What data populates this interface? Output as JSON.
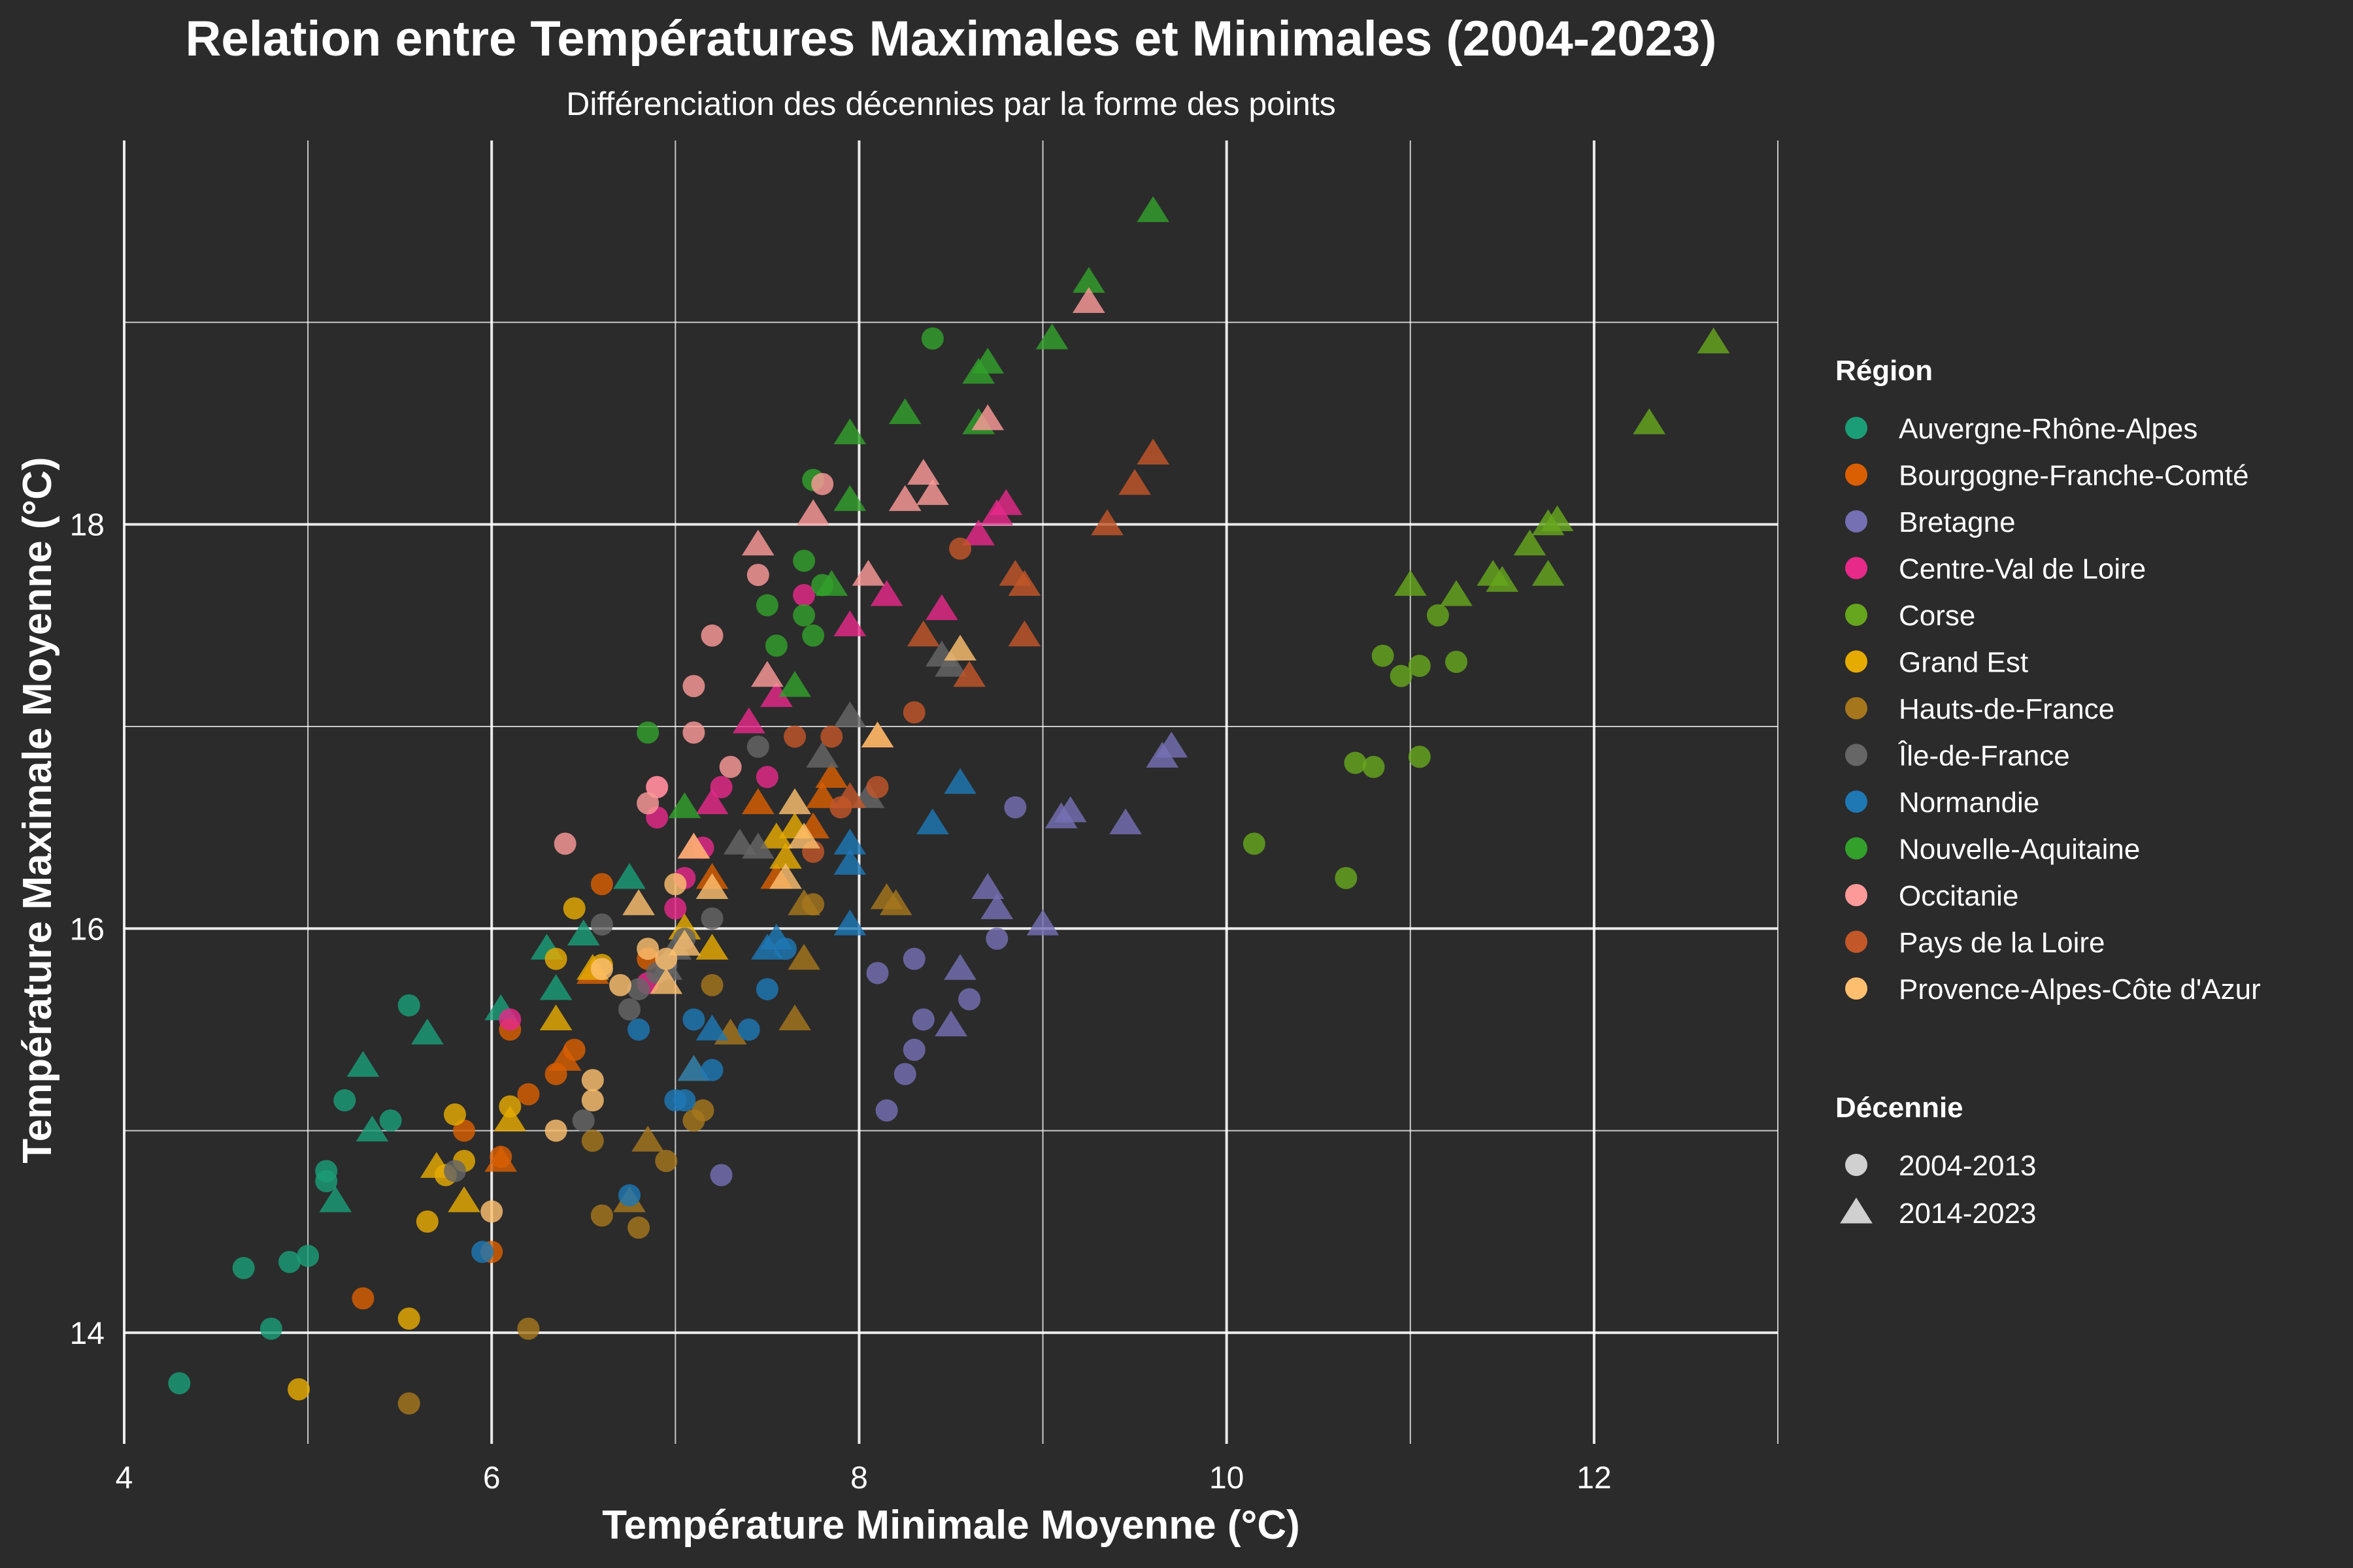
{
  "chart_data": {
    "type": "scatter",
    "title": "Relation entre Températures Maximales et Minimales (2004-2023)",
    "subtitle": "Différenciation des décennies par la forme des points",
    "xlabel": "Température Minimale Moyenne (°C)",
    "ylabel": "Température Maximale Moyenne (°C)",
    "xlim": [
      4.0,
      13.0
    ],
    "ylim": [
      13.45,
      19.9
    ],
    "xticks": [
      4,
      6,
      8,
      10,
      12
    ],
    "yticks": [
      14,
      16,
      18
    ],
    "grid": true,
    "legend_position": "right",
    "legend_region_title": "Région",
    "legend_decade_title": "Décennie",
    "decades": [
      {
        "label": "2004-2013",
        "shape": "circle"
      },
      {
        "label": "2014-2023",
        "shape": "triangle"
      }
    ],
    "series": [
      {
        "name": "Auvergne-Rhône-Alpes",
        "color": "#1b9e77",
        "points_2004_2013": [
          [
            4.3,
            13.75
          ],
          [
            4.65,
            14.32
          ],
          [
            4.8,
            14.02
          ],
          [
            4.9,
            14.35
          ],
          [
            5.0,
            14.38
          ],
          [
            5.1,
            14.8
          ],
          [
            5.1,
            14.75
          ],
          [
            5.2,
            15.15
          ],
          [
            5.45,
            15.05
          ],
          [
            5.55,
            15.62
          ]
        ],
        "points_2014_2023": [
          [
            5.15,
            14.65
          ],
          [
            5.3,
            15.32
          ],
          [
            5.35,
            15.0
          ],
          [
            5.65,
            15.48
          ],
          [
            6.05,
            15.6
          ],
          [
            6.3,
            15.9
          ],
          [
            6.35,
            15.7
          ],
          [
            6.5,
            15.97
          ],
          [
            6.75,
            16.25
          ]
        ]
      },
      {
        "name": "Bourgogne-Franche-Comté",
        "color": "#d95f02",
        "points_2004_2013": [
          [
            5.3,
            14.17
          ],
          [
            5.85,
            15.0
          ],
          [
            6.0,
            14.4
          ],
          [
            6.05,
            14.87
          ],
          [
            6.1,
            15.5
          ],
          [
            6.2,
            15.18
          ],
          [
            6.35,
            15.28
          ],
          [
            6.45,
            15.4
          ],
          [
            6.6,
            16.22
          ],
          [
            6.85,
            15.85
          ]
        ],
        "points_2014_2023": [
          [
            6.05,
            14.85
          ],
          [
            6.4,
            15.35
          ],
          [
            6.55,
            15.78
          ],
          [
            7.2,
            16.25
          ],
          [
            7.45,
            16.62
          ],
          [
            7.55,
            16.25
          ],
          [
            7.75,
            16.5
          ],
          [
            7.85,
            16.75
          ],
          [
            7.8,
            16.65
          ]
        ]
      },
      {
        "name": "Bretagne",
        "color": "#7570b3",
        "points_2004_2013": [
          [
            7.25,
            14.78
          ],
          [
            8.1,
            15.78
          ],
          [
            8.15,
            15.1
          ],
          [
            8.25,
            15.28
          ],
          [
            8.3,
            15.4
          ],
          [
            8.3,
            15.85
          ],
          [
            8.35,
            15.55
          ],
          [
            8.6,
            15.65
          ],
          [
            8.75,
            15.95
          ],
          [
            8.85,
            16.6
          ]
        ],
        "points_2014_2023": [
          [
            8.5,
            15.52
          ],
          [
            8.55,
            15.8
          ],
          [
            8.7,
            16.2
          ],
          [
            8.75,
            16.1
          ],
          [
            9.0,
            16.02
          ],
          [
            9.1,
            16.55
          ],
          [
            9.15,
            16.58
          ],
          [
            9.45,
            16.52
          ],
          [
            9.65,
            16.85
          ],
          [
            9.7,
            16.9
          ]
        ]
      },
      {
        "name": "Centre-Val de Loire",
        "color": "#e7298a",
        "points_2004_2013": [
          [
            6.1,
            15.55
          ],
          [
            6.85,
            15.73
          ],
          [
            6.9,
            16.7
          ],
          [
            6.9,
            16.55
          ],
          [
            7.0,
            16.1
          ],
          [
            7.05,
            16.25
          ],
          [
            7.15,
            16.4
          ],
          [
            7.25,
            16.7
          ],
          [
            7.5,
            16.75
          ],
          [
            7.7,
            17.65
          ]
        ],
        "points_2014_2023": [
          [
            7.1,
            16.4
          ],
          [
            7.2,
            16.62
          ],
          [
            7.4,
            17.02
          ],
          [
            7.55,
            17.15
          ],
          [
            7.95,
            17.5
          ],
          [
            8.15,
            17.65
          ],
          [
            8.45,
            17.58
          ],
          [
            8.65,
            17.95
          ],
          [
            8.8,
            18.1
          ],
          [
            8.75,
            18.05
          ]
        ]
      },
      {
        "name": "Corse",
        "color": "#66a61e",
        "points_2004_2013": [
          [
            10.15,
            16.42
          ],
          [
            10.65,
            16.25
          ],
          [
            10.7,
            16.82
          ],
          [
            10.8,
            16.8
          ],
          [
            10.85,
            17.35
          ],
          [
            10.95,
            17.25
          ],
          [
            11.05,
            17.3
          ],
          [
            11.05,
            16.85
          ],
          [
            11.15,
            17.55
          ],
          [
            11.25,
            17.32
          ]
        ],
        "points_2014_2023": [
          [
            11.0,
            17.7
          ],
          [
            11.25,
            17.65
          ],
          [
            11.45,
            17.75
          ],
          [
            11.5,
            17.72
          ],
          [
            11.65,
            17.9
          ],
          [
            11.75,
            17.75
          ],
          [
            11.75,
            18.0
          ],
          [
            11.8,
            18.02
          ],
          [
            12.3,
            18.5
          ],
          [
            12.65,
            18.9
          ]
        ]
      },
      {
        "name": "Grand Est",
        "color": "#e6ab02",
        "points_2004_2013": [
          [
            4.95,
            13.72
          ],
          [
            5.55,
            14.07
          ],
          [
            5.65,
            14.55
          ],
          [
            5.75,
            14.78
          ],
          [
            5.8,
            15.08
          ],
          [
            5.85,
            14.85
          ],
          [
            6.1,
            15.12
          ],
          [
            6.35,
            15.85
          ],
          [
            6.45,
            16.1
          ],
          [
            6.6,
            15.82
          ]
        ],
        "points_2014_2023": [
          [
            5.7,
            14.82
          ],
          [
            5.85,
            14.65
          ],
          [
            6.1,
            15.05
          ],
          [
            6.35,
            15.55
          ],
          [
            6.55,
            15.8
          ],
          [
            7.05,
            16.0
          ],
          [
            7.2,
            15.9
          ],
          [
            7.55,
            16.45
          ],
          [
            7.6,
            16.35
          ],
          [
            7.65,
            16.5
          ]
        ]
      },
      {
        "name": "Hauts-de-France",
        "color": "#a6761d",
        "points_2004_2013": [
          [
            5.55,
            13.65
          ],
          [
            6.2,
            14.02
          ],
          [
            6.55,
            14.95
          ],
          [
            6.6,
            14.58
          ],
          [
            6.8,
            14.52
          ],
          [
            6.95,
            14.85
          ],
          [
            7.1,
            15.05
          ],
          [
            7.15,
            15.1
          ],
          [
            7.2,
            15.72
          ],
          [
            7.75,
            16.12
          ]
        ],
        "points_2014_2023": [
          [
            6.75,
            14.65
          ],
          [
            6.85,
            14.95
          ],
          [
            7.1,
            15.3
          ],
          [
            7.3,
            15.48
          ],
          [
            7.65,
            15.55
          ],
          [
            7.7,
            15.85
          ],
          [
            7.7,
            16.12
          ],
          [
            8.15,
            16.15
          ],
          [
            8.2,
            16.12
          ]
        ]
      },
      {
        "name": "Île-de-France",
        "color": "#666666",
        "points_2004_2013": [
          [
            5.8,
            14.8
          ],
          [
            6.5,
            15.05
          ],
          [
            6.6,
            16.02
          ],
          [
            6.75,
            15.6
          ],
          [
            6.8,
            15.7
          ],
          [
            6.9,
            15.78
          ],
          [
            6.95,
            15.82
          ],
          [
            7.05,
            15.95
          ],
          [
            7.2,
            16.05
          ],
          [
            7.45,
            16.9
          ]
        ],
        "points_2014_2023": [
          [
            6.95,
            15.8
          ],
          [
            7.0,
            15.9
          ],
          [
            7.35,
            16.42
          ],
          [
            7.45,
            16.4
          ],
          [
            7.8,
            16.85
          ],
          [
            7.95,
            17.05
          ],
          [
            8.05,
            16.65
          ],
          [
            8.45,
            17.35
          ],
          [
            8.5,
            17.3
          ]
        ]
      },
      {
        "name": "Normandie",
        "color": "#1f78b4",
        "points_2004_2013": [
          [
            5.95,
            14.4
          ],
          [
            6.75,
            14.68
          ],
          [
            6.8,
            15.5
          ],
          [
            7.0,
            15.15
          ],
          [
            7.05,
            15.15
          ],
          [
            7.1,
            15.55
          ],
          [
            7.2,
            15.3
          ],
          [
            7.4,
            15.5
          ],
          [
            7.5,
            15.7
          ],
          [
            7.6,
            15.9
          ]
        ],
        "points_2014_2023": [
          [
            7.1,
            15.3
          ],
          [
            7.2,
            15.5
          ],
          [
            7.5,
            15.9
          ],
          [
            7.55,
            15.95
          ],
          [
            7.95,
            16.02
          ],
          [
            7.95,
            16.32
          ],
          [
            7.95,
            16.42
          ],
          [
            8.4,
            16.52
          ],
          [
            8.55,
            16.72
          ]
        ]
      },
      {
        "name": "Nouvelle-Aquitaine",
        "color": "#33a02c",
        "points_2004_2013": [
          [
            6.85,
            16.97
          ],
          [
            7.5,
            17.6
          ],
          [
            7.55,
            17.4
          ],
          [
            7.7,
            17.55
          ],
          [
            7.7,
            17.82
          ],
          [
            7.75,
            18.22
          ],
          [
            7.75,
            17.45
          ],
          [
            7.8,
            17.7
          ],
          [
            8.4,
            18.92
          ]
        ],
        "points_2014_2023": [
          [
            7.05,
            16.6
          ],
          [
            7.65,
            17.2
          ],
          [
            7.85,
            17.7
          ],
          [
            7.95,
            18.12
          ],
          [
            7.95,
            18.45
          ],
          [
            8.25,
            18.55
          ],
          [
            8.65,
            18.5
          ],
          [
            8.7,
            18.8
          ],
          [
            9.05,
            18.92
          ],
          [
            9.25,
            19.2
          ],
          [
            9.6,
            19.55
          ],
          [
            8.65,
            18.75
          ]
        ]
      },
      {
        "name": "Occitanie",
        "color": "#fb9a99",
        "points_2004_2013": [
          [
            6.4,
            16.42
          ],
          [
            6.85,
            16.62
          ],
          [
            6.9,
            16.7
          ],
          [
            7.1,
            16.97
          ],
          [
            7.1,
            17.2
          ],
          [
            7.2,
            17.45
          ],
          [
            7.3,
            16.8
          ],
          [
            7.45,
            17.75
          ],
          [
            7.8,
            18.2
          ]
        ],
        "points_2014_2023": [
          [
            7.45,
            17.9
          ],
          [
            7.5,
            17.25
          ],
          [
            7.75,
            18.05
          ],
          [
            8.05,
            17.75
          ],
          [
            8.25,
            18.12
          ],
          [
            8.35,
            18.25
          ],
          [
            8.4,
            18.15
          ],
          [
            8.7,
            18.52
          ],
          [
            9.25,
            19.1
          ]
        ]
      },
      {
        "name": "Pays de la Loire",
        "color": "#c2572a",
        "points_2004_2013": [
          [
            7.65,
            16.95
          ],
          [
            7.75,
            16.38
          ],
          [
            7.85,
            16.95
          ],
          [
            7.9,
            16.6
          ],
          [
            8.1,
            16.7
          ],
          [
            8.3,
            17.07
          ],
          [
            8.55,
            17.88
          ]
        ],
        "points_2014_2023": [
          [
            7.95,
            16.65
          ],
          [
            8.1,
            16.95
          ],
          [
            8.35,
            17.45
          ],
          [
            8.6,
            17.25
          ],
          [
            8.85,
            17.75
          ],
          [
            8.9,
            17.7
          ],
          [
            8.9,
            17.45
          ],
          [
            9.35,
            18.0
          ],
          [
            9.5,
            18.2
          ],
          [
            9.6,
            18.35
          ]
        ]
      },
      {
        "name": "Provence-Alpes-Côte d'Azur",
        "color": "#fdbf6f",
        "points_2004_2013": [
          [
            6.0,
            14.6
          ],
          [
            6.35,
            15.0
          ],
          [
            6.55,
            15.15
          ],
          [
            6.55,
            15.25
          ],
          [
            6.6,
            15.8
          ],
          [
            6.7,
            15.72
          ],
          [
            6.85,
            15.9
          ],
          [
            6.95,
            15.85
          ],
          [
            7.0,
            16.22
          ]
        ],
        "points_2014_2023": [
          [
            6.8,
            16.12
          ],
          [
            6.95,
            15.73
          ],
          [
            7.05,
            15.92
          ],
          [
            7.1,
            16.4
          ],
          [
            7.2,
            16.2
          ],
          [
            7.6,
            16.25
          ],
          [
            7.65,
            16.62
          ],
          [
            7.7,
            16.45
          ],
          [
            8.1,
            16.95
          ],
          [
            8.55,
            17.38
          ]
        ]
      }
    ]
  }
}
